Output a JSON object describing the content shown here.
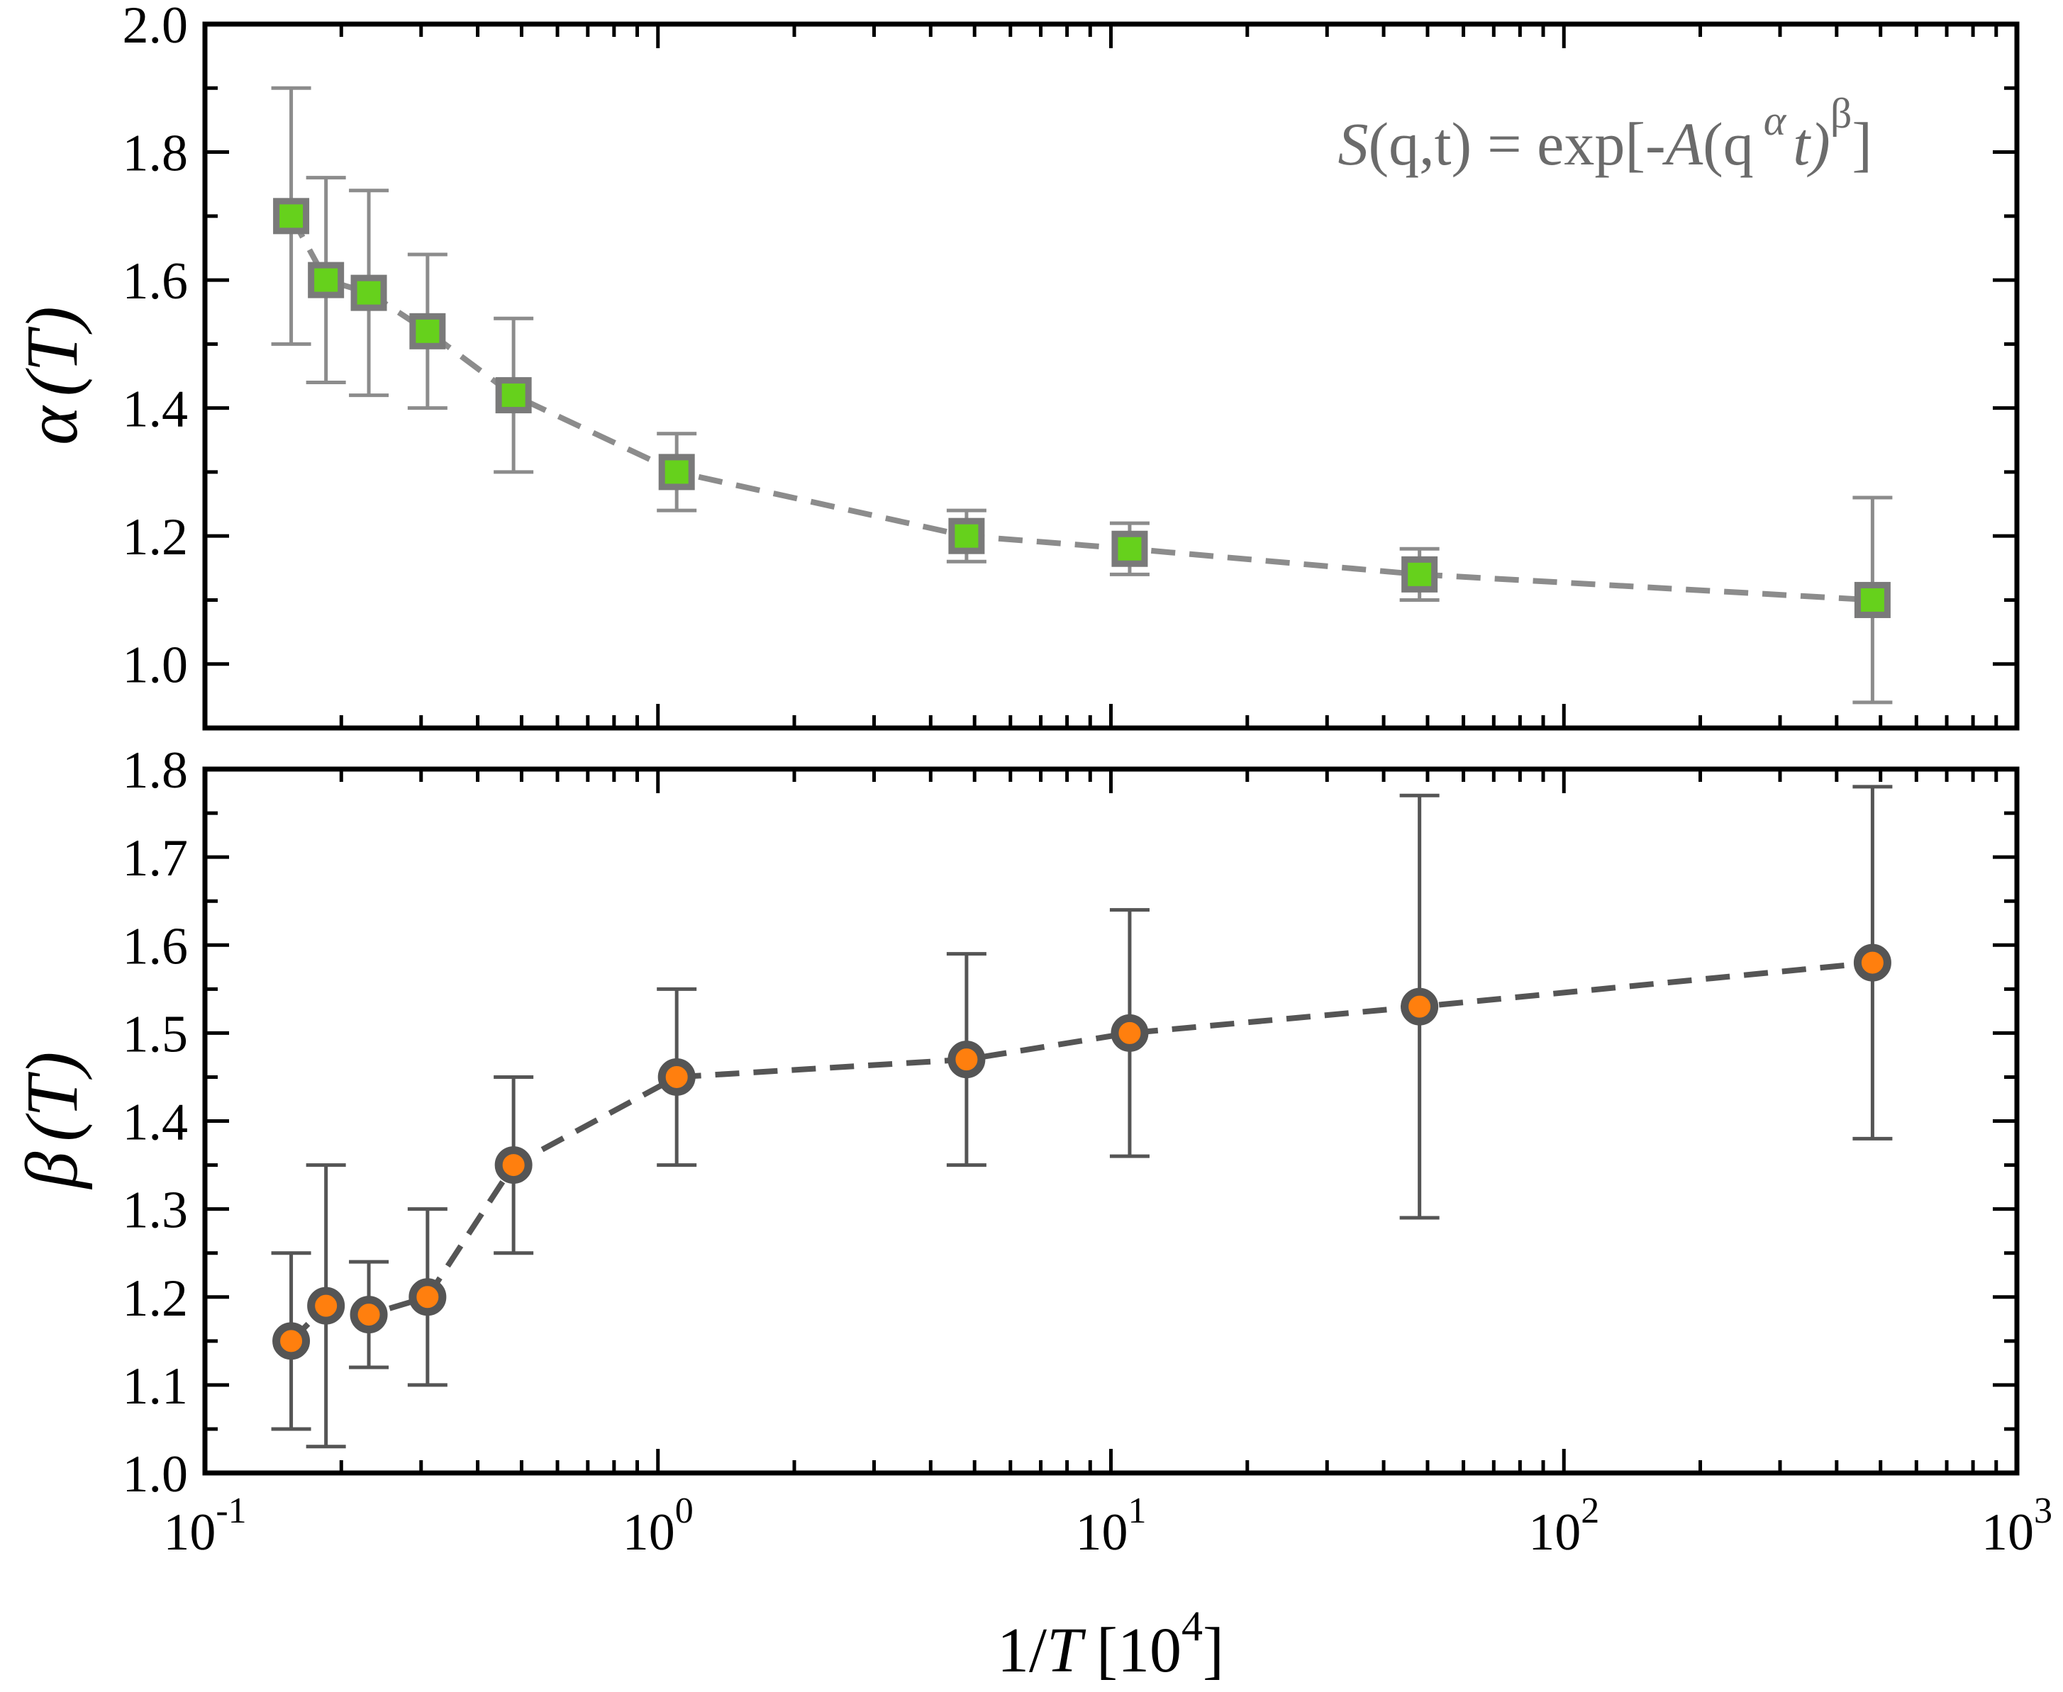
{
  "chart_data": [
    {
      "type": "scatter",
      "panel": "top",
      "ylabel_symbol": "α",
      "ylabel_arg": "(T)",
      "ylim": [
        0.9,
        2.0
      ],
      "xscale": "log",
      "xlim": [
        0.1,
        1000
      ],
      "yticks": [
        "1.0",
        "1.2",
        "1.4",
        "1.6",
        "1.8",
        "2.0"
      ],
      "equation": {
        "lhs_S": "S",
        "lhs_args": "(q,t)",
        "equals": "= exp[-",
        "A": "A",
        "open": "(q",
        "alpha": "α",
        "t": "t)",
        "beta": "β",
        "close": "]"
      },
      "series": [
        {
          "name": "alpha",
          "marker": "square",
          "marker_fill": "#66d11c",
          "marker_edge": "#7a7a7a",
          "line_color": "#8c8c8c",
          "error_color": "#8c8c8c",
          "x": [
            0.155,
            0.185,
            0.23,
            0.31,
            0.48,
            1.1,
            4.8,
            11,
            48,
            480
          ],
          "y": [
            1.7,
            1.6,
            1.58,
            1.52,
            1.42,
            1.3,
            1.2,
            1.18,
            1.14,
            1.1
          ],
          "yerr_low": [
            1.5,
            1.44,
            1.42,
            1.4,
            1.3,
            1.24,
            1.16,
            1.14,
            1.1,
            0.94
          ],
          "yerr_high": [
            1.9,
            1.76,
            1.74,
            1.64,
            1.54,
            1.36,
            1.24,
            1.22,
            1.18,
            1.26
          ]
        }
      ]
    },
    {
      "type": "scatter",
      "panel": "bottom",
      "ylabel_symbol": "β",
      "ylabel_arg": "(T)",
      "ylim": [
        1.0,
        1.8
      ],
      "xscale": "log",
      "xlim": [
        0.1,
        1000
      ],
      "yticks": [
        "1.0",
        "1.1",
        "1.2",
        "1.3",
        "1.4",
        "1.5",
        "1.6",
        "1.7",
        "1.8"
      ],
      "xticks": [
        {
          "base": "10",
          "exp": "-1"
        },
        {
          "base": "10",
          "exp": "0"
        },
        {
          "base": "10",
          "exp": "1"
        },
        {
          "base": "10",
          "exp": "2"
        },
        {
          "base": "10",
          "exp": "3"
        }
      ],
      "xlabel": {
        "prefix": "1/",
        "T": "T",
        "unit_open": "[10",
        "unit_exp": "4",
        "unit_close": "]"
      },
      "series": [
        {
          "name": "beta",
          "marker": "circle",
          "marker_fill": "#ff7f0e",
          "marker_edge": "#555555",
          "line_color": "#555555",
          "error_color": "#555555",
          "x": [
            0.155,
            0.185,
            0.23,
            0.31,
            0.48,
            1.1,
            4.8,
            11,
            48,
            480
          ],
          "y": [
            1.15,
            1.19,
            1.18,
            1.2,
            1.35,
            1.45,
            1.47,
            1.5,
            1.53,
            1.58
          ],
          "yerr_low": [
            1.05,
            1.03,
            1.12,
            1.1,
            1.25,
            1.35,
            1.35,
            1.36,
            1.29,
            1.38
          ],
          "yerr_high": [
            1.25,
            1.35,
            1.24,
            1.3,
            1.45,
            1.55,
            1.59,
            1.64,
            1.77,
            1.78
          ]
        }
      ]
    }
  ]
}
